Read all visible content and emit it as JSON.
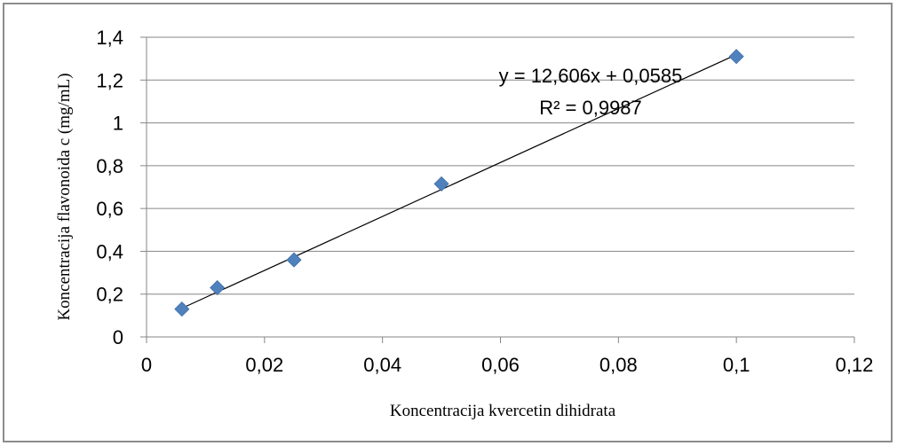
{
  "chart_data": {
    "type": "scatter",
    "xlabel": "Koncentracija kvercetin dihidrata",
    "ylabel": "Koncentracija flavonoida c (mg/mL)",
    "xlim": [
      0,
      0.12
    ],
    "ylim": [
      0,
      1.4
    ],
    "x_ticks": [
      "0",
      "0,02",
      "0,04",
      "0,06",
      "0,08",
      "0,1",
      "0,12"
    ],
    "y_ticks": [
      "0",
      "0,2",
      "0,4",
      "0,6",
      "0,8",
      "1",
      "1,2",
      "1,4"
    ],
    "grid": "horizontal",
    "legend": "none",
    "series": [
      {
        "marker": "diamond",
        "color": "#4f81bd",
        "points": [
          {
            "x": 0.006,
            "y": 0.13
          },
          {
            "x": 0.012,
            "y": 0.23
          },
          {
            "x": 0.025,
            "y": 0.36
          },
          {
            "x": 0.05,
            "y": 0.715
          },
          {
            "x": 0.1,
            "y": 1.31
          }
        ]
      }
    ],
    "trendline": {
      "type": "linear",
      "slope": 12.606,
      "intercept": 0.0585,
      "x_range": [
        0.006,
        0.1
      ],
      "equation_label": "y = 12,606x + 0,0585",
      "r2_label": "R² = 0,9987",
      "color": "#000000"
    }
  }
}
